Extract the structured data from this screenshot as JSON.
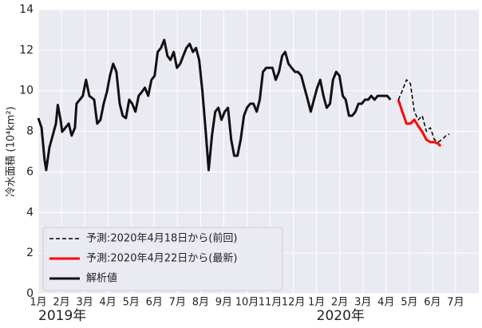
{
  "chart_data": {
    "type": "line",
    "ylabel": "冷水面積 (10⁴km²)",
    "xlim": [
      0,
      19
    ],
    "ylim": [
      0,
      14
    ],
    "yticks": [
      0,
      2,
      4,
      6,
      8,
      10,
      12,
      14
    ],
    "xticks": [
      {
        "value": 0,
        "label": "1月"
      },
      {
        "value": 1,
        "label": "2月"
      },
      {
        "value": 2,
        "label": "3月"
      },
      {
        "value": 3,
        "label": "4月"
      },
      {
        "value": 4,
        "label": "5月"
      },
      {
        "value": 5,
        "label": "6月"
      },
      {
        "value": 6,
        "label": "7月"
      },
      {
        "value": 7,
        "label": "8月"
      },
      {
        "value": 8,
        "label": "9月"
      },
      {
        "value": 9,
        "label": "10月"
      },
      {
        "value": 10,
        "label": "11月"
      },
      {
        "value": 11,
        "label": "12月"
      },
      {
        "value": 12,
        "label": "1月"
      },
      {
        "value": 13,
        "label": "2月"
      },
      {
        "value": 14,
        "label": "3月"
      },
      {
        "value": 15,
        "label": "4月"
      },
      {
        "value": 16,
        "label": "5月"
      },
      {
        "value": 17,
        "label": "6月"
      },
      {
        "value": 18,
        "label": "7月"
      }
    ],
    "x_year_labels": [
      {
        "value": 0,
        "label": "2019年"
      },
      {
        "value": 12,
        "label": "2020年"
      }
    ],
    "grid": true,
    "legend": "lower left",
    "series": [
      {
        "name": "予測:2020年4月18日から(前回)",
        "color": "#000000",
        "dash": true,
        "width": 1.5,
        "x": [
          15.53,
          15.7,
          15.88,
          16.05,
          16.22,
          16.39,
          16.56,
          16.74,
          16.91,
          17.08,
          17.25,
          17.42,
          17.59,
          17.73
        ],
        "values": [
          9.56,
          10.0,
          10.54,
          10.35,
          8.97,
          8.57,
          8.77,
          8.0,
          8.18,
          7.6,
          7.47,
          7.6,
          7.79,
          7.87
        ]
      },
      {
        "name": "予測:2020年4月22日から(最新)",
        "color": "#ff0000",
        "dash": false,
        "width": 3,
        "x": [
          15.53,
          15.7,
          15.88,
          16.05,
          16.22,
          16.39,
          16.56,
          16.74,
          16.91,
          17.08,
          17.25,
          17.35
        ],
        "values": [
          9.56,
          8.97,
          8.38,
          8.38,
          8.57,
          8.26,
          7.98,
          7.59,
          7.47,
          7.47,
          7.39,
          7.27
        ]
      },
      {
        "name": "解析値",
        "color": "#111111",
        "dash": false,
        "width": 3,
        "x": [
          0,
          0.14,
          0.27,
          0.34,
          0.48,
          0.62,
          0.76,
          0.84,
          0.96,
          1.03,
          1.17,
          1.31,
          1.44,
          1.58,
          1.65,
          1.79,
          1.92,
          2.06,
          2.2,
          2.41,
          2.54,
          2.68,
          2.82,
          2.96,
          3.09,
          3.23,
          3.37,
          3.51,
          3.64,
          3.78,
          3.92,
          4.05,
          4.19,
          4.33,
          4.47,
          4.6,
          4.74,
          4.88,
          5.02,
          5.15,
          5.29,
          5.43,
          5.57,
          5.7,
          5.84,
          5.98,
          6.12,
          6.25,
          6.39,
          6.53,
          6.67,
          6.8,
          6.94,
          7.08,
          7.22,
          7.35,
          7.49,
          7.63,
          7.77,
          7.9,
          8.04,
          8.18,
          8.32,
          8.45,
          8.59,
          8.73,
          8.87,
          9.0,
          9.14,
          9.28,
          9.42,
          9.55,
          9.69,
          9.83,
          9.97,
          10.1,
          10.24,
          10.38,
          10.52,
          10.65,
          10.79,
          10.93,
          11.07,
          11.2,
          11.34,
          11.48,
          11.62,
          11.75,
          11.89,
          12.03,
          12.16,
          12.3,
          12.44,
          12.58,
          12.71,
          12.85,
          12.99,
          13.13,
          13.26,
          13.4,
          13.54,
          13.68,
          13.81,
          13.95,
          14.09,
          14.23,
          14.36,
          14.5,
          14.64,
          14.78,
          14.91,
          15.05,
          15.19
        ],
        "values": [
          8.65,
          8.18,
          6.61,
          6.09,
          7.2,
          7.79,
          8.38,
          9.3,
          8.57,
          7.98,
          8.18,
          8.38,
          7.79,
          8.18,
          9.36,
          9.56,
          9.75,
          10.54,
          9.75,
          9.56,
          8.38,
          8.57,
          9.36,
          9.95,
          10.74,
          11.33,
          10.93,
          9.36,
          8.77,
          8.65,
          9.56,
          9.36,
          8.97,
          9.75,
          9.95,
          10.15,
          9.75,
          10.54,
          10.74,
          11.91,
          12.11,
          12.5,
          11.72,
          11.52,
          11.91,
          11.13,
          11.33,
          11.72,
          12.11,
          12.31,
          11.91,
          12.11,
          11.52,
          9.95,
          7.98,
          6.09,
          7.79,
          8.97,
          9.16,
          8.57,
          8.97,
          9.16,
          7.59,
          6.8,
          6.8,
          7.59,
          8.77,
          9.16,
          9.36,
          9.36,
          8.97,
          9.56,
          10.93,
          11.13,
          11.13,
          11.13,
          10.54,
          10.93,
          11.72,
          11.91,
          11.33,
          11.13,
          10.93,
          10.93,
          10.74,
          10.15,
          9.56,
          8.97,
          9.56,
          10.15,
          10.54,
          9.75,
          9.16,
          9.36,
          10.54,
          10.93,
          10.74,
          9.75,
          9.56,
          8.77,
          8.77,
          8.97,
          9.36,
          9.36,
          9.56,
          9.56,
          9.75,
          9.56,
          9.75,
          9.75,
          9.75,
          9.75,
          9.56
        ]
      }
    ]
  }
}
